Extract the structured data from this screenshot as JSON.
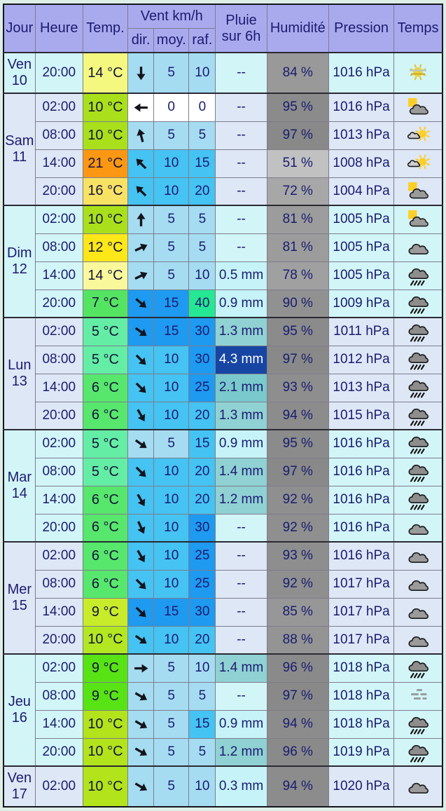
{
  "header": {
    "jour": "Jour",
    "heure": "Heure",
    "temp": "Temp.",
    "vent": "Vent km/h",
    "dir": "dir.",
    "moy": "moy.",
    "raf": "raf.",
    "pluie_line1": "Pluie",
    "pluie_line2": "sur 6h",
    "humidite": "Humidité",
    "pression": "Pression",
    "temps": "Temps"
  },
  "colors": {
    "header_bg": "#a9aaee",
    "text": "#1b1b70",
    "tone_cyan": "#d2f5f8",
    "tone_lav": "#dde7f6",
    "wind_levels": {
      "w0": "#ffffff",
      "w1": "#a5dcf2",
      "w2": "#45c3f2",
      "w3": "#1e9af0",
      "w4": "#26e793"
    },
    "rain_levels": {
      "p1": "#c5f3f8",
      "p2": "#90d1d3",
      "p3": "#7ac9cc",
      "p4": "#1645a4"
    },
    "rain_dark_text": "#ffffff",
    "arrow": "#14141c"
  },
  "days": [
    {
      "label": "Ven",
      "num": "10",
      "tone": "cyan",
      "rows": [
        {
          "heure": "20:00",
          "temp": "14 °C",
          "temp_color": "#f4f87e",
          "wind_deg": 90,
          "moy": "5",
          "moy_level": "w1",
          "raf": "10",
          "raf_level": "w1",
          "pluie": "--",
          "pluie_level": "none",
          "humidite": "84 %",
          "pression": "1016 hPa",
          "icon": "hazy-sun"
        }
      ]
    },
    {
      "label": "Sam",
      "num": "11",
      "tone": "lav",
      "rows": [
        {
          "heure": "02:00",
          "temp": "10 °C",
          "temp_color": "#a9e01b",
          "wind_deg": 180,
          "moy": "0",
          "moy_level": "w0",
          "raf": "0",
          "raf_level": "w0",
          "pluie": "--",
          "pluie_level": "none",
          "humidite": "95 %",
          "pression": "1016 hPa",
          "icon": "moon-cloud"
        },
        {
          "heure": "08:00",
          "temp": "10 °C",
          "temp_color": "#a9e01b",
          "wind_deg": -105,
          "moy": "5",
          "moy_level": "w1",
          "raf": "5",
          "raf_level": "w1",
          "pluie": "--",
          "pluie_level": "none",
          "humidite": "97 %",
          "pression": "1013 hPa",
          "icon": "sun-cloud"
        },
        {
          "heure": "14:00",
          "temp": "21 °C",
          "temp_color": "#fb9712",
          "wind_deg": -135,
          "moy": "10",
          "moy_level": "w2",
          "raf": "15",
          "raf_level": "w2",
          "pluie": "--",
          "pluie_level": "none",
          "humidite": "51 %",
          "pression": "1008 hPa",
          "icon": "sun-cloud"
        },
        {
          "heure": "20:00",
          "temp": "16 °C",
          "temp_color": "#f8e264",
          "wind_deg": -135,
          "moy": "10",
          "moy_level": "w2",
          "raf": "20",
          "raf_level": "w2",
          "pluie": "--",
          "pluie_level": "none",
          "humidite": "72 %",
          "pression": "1004 hPa",
          "icon": "moon-cloud"
        }
      ]
    },
    {
      "label": "Dim",
      "num": "12",
      "tone": "cyan",
      "rows": [
        {
          "heure": "02:00",
          "temp": "10 °C",
          "temp_color": "#a9e01b",
          "wind_deg": -90,
          "moy": "5",
          "moy_level": "w1",
          "raf": "5",
          "raf_level": "w1",
          "pluie": "--",
          "pluie_level": "none",
          "humidite": "81 %",
          "pression": "1005 hPa",
          "icon": "moon-cloud"
        },
        {
          "heure": "08:00",
          "temp": "12 °C",
          "temp_color": "#fde719",
          "wind_deg": -25,
          "moy": "5",
          "moy_level": "w1",
          "raf": "5",
          "raf_level": "w1",
          "pluie": "--",
          "pluie_level": "none",
          "humidite": "81 %",
          "pression": "1005 hPa",
          "icon": "cloud"
        },
        {
          "heure": "14:00",
          "temp": "14 °C",
          "temp_color": "#f9f99c",
          "wind_deg": -25,
          "moy": "5",
          "moy_level": "w1",
          "raf": "10",
          "raf_level": "w1",
          "pluie": "0.5 mm",
          "pluie_level": "p1",
          "humidite": "78 %",
          "pression": "1005 hPa",
          "icon": "rain"
        },
        {
          "heure": "20:00",
          "temp": "7 °C",
          "temp_color": "#55e462",
          "wind_deg": 40,
          "moy": "15",
          "moy_level": "w3",
          "raf": "40",
          "raf_level": "w4",
          "pluie": "0.9 mm",
          "pluie_level": "p1",
          "humidite": "90 %",
          "pression": "1009 hPa",
          "icon": "rain"
        }
      ]
    },
    {
      "label": "Lun",
      "num": "13",
      "tone": "lav",
      "rows": [
        {
          "heure": "02:00",
          "temp": "5 °C",
          "temp_color": "#64eda5",
          "wind_deg": 35,
          "moy": "15",
          "moy_level": "w3",
          "raf": "30",
          "raf_level": "w3",
          "pluie": "1.3 mm",
          "pluie_level": "p2",
          "humidite": "95 %",
          "pression": "1011 hPa",
          "icon": "rain"
        },
        {
          "heure": "08:00",
          "temp": "5 °C",
          "temp_color": "#64eda5",
          "wind_deg": 45,
          "moy": "10",
          "moy_level": "w2",
          "raf": "30",
          "raf_level": "w3",
          "pluie": "4.3 mm",
          "pluie_level": "p4",
          "humidite": "97 %",
          "pression": "1012 hPa",
          "icon": "rain"
        },
        {
          "heure": "14:00",
          "temp": "6 °C",
          "temp_color": "#57e76d",
          "wind_deg": 45,
          "moy": "10",
          "moy_level": "w2",
          "raf": "25",
          "raf_level": "w3",
          "pluie": "2.1 mm",
          "pluie_level": "p3",
          "humidite": "93 %",
          "pression": "1013 hPa",
          "icon": "rain"
        },
        {
          "heure": "20:00",
          "temp": "6 °C",
          "temp_color": "#57e76d",
          "wind_deg": 60,
          "moy": "10",
          "moy_level": "w2",
          "raf": "20",
          "raf_level": "w2",
          "pluie": "1.3 mm",
          "pluie_level": "p2",
          "humidite": "94 %",
          "pression": "1015 hPa",
          "icon": "rain"
        }
      ]
    },
    {
      "label": "Mar",
      "num": "14",
      "tone": "cyan",
      "rows": [
        {
          "heure": "02:00",
          "temp": "5 °C",
          "temp_color": "#64eda5",
          "wind_deg": 35,
          "moy": "5",
          "moy_level": "w1",
          "raf": "15",
          "raf_level": "w2",
          "pluie": "0.9 mm",
          "pluie_level": "p1",
          "humidite": "95 %",
          "pression": "1016 hPa",
          "icon": "rain"
        },
        {
          "heure": "08:00",
          "temp": "5 °C",
          "temp_color": "#64eda5",
          "wind_deg": 45,
          "moy": "10",
          "moy_level": "w2",
          "raf": "20",
          "raf_level": "w2",
          "pluie": "1.4 mm",
          "pluie_level": "p2",
          "humidite": "97 %",
          "pression": "1016 hPa",
          "icon": "rain"
        },
        {
          "heure": "14:00",
          "temp": "6 °C",
          "temp_color": "#57e76d",
          "wind_deg": 60,
          "moy": "10",
          "moy_level": "w2",
          "raf": "20",
          "raf_level": "w2",
          "pluie": "1.2 mm",
          "pluie_level": "p2",
          "humidite": "92 %",
          "pression": "1016 hPa",
          "icon": "rain"
        },
        {
          "heure": "20:00",
          "temp": "6 °C",
          "temp_color": "#57e76d",
          "wind_deg": 65,
          "moy": "10",
          "moy_level": "w2",
          "raf": "30",
          "raf_level": "w3",
          "pluie": "--",
          "pluie_level": "none",
          "humidite": "92 %",
          "pression": "1016 hPa",
          "icon": "cloud"
        }
      ]
    },
    {
      "label": "Mer",
      "num": "15",
      "tone": "lav",
      "rows": [
        {
          "heure": "02:00",
          "temp": "6 °C",
          "temp_color": "#57e76d",
          "wind_deg": 60,
          "moy": "10",
          "moy_level": "w2",
          "raf": "25",
          "raf_level": "w3",
          "pluie": "--",
          "pluie_level": "none",
          "humidite": "93 %",
          "pression": "1016 hPa",
          "icon": "cloud"
        },
        {
          "heure": "08:00",
          "temp": "6 °C",
          "temp_color": "#57e76d",
          "wind_deg": 45,
          "moy": "10",
          "moy_level": "w2",
          "raf": "25",
          "raf_level": "w3",
          "pluie": "--",
          "pluie_level": "none",
          "humidite": "92 %",
          "pression": "1017 hPa",
          "icon": "cloud"
        },
        {
          "heure": "14:00",
          "temp": "9 °C",
          "temp_color": "#c8ec29",
          "wind_deg": 45,
          "moy": "15",
          "moy_level": "w3",
          "raf": "30",
          "raf_level": "w3",
          "pluie": "--",
          "pluie_level": "none",
          "humidite": "85 %",
          "pression": "1017 hPa",
          "icon": "cloud"
        },
        {
          "heure": "20:00",
          "temp": "10 °C",
          "temp_color": "#b2e721",
          "wind_deg": 35,
          "moy": "10",
          "moy_level": "w2",
          "raf": "20",
          "raf_level": "w2",
          "pluie": "--",
          "pluie_level": "none",
          "humidite": "88 %",
          "pression": "1017 hPa",
          "icon": "cloud"
        }
      ]
    },
    {
      "label": "Jeu",
      "num": "16",
      "tone": "cyan",
      "rows": [
        {
          "heure": "02:00",
          "temp": "9 °C",
          "temp_color": "#58e315",
          "wind_deg": 0,
          "moy": "5",
          "moy_level": "w1",
          "raf": "10",
          "raf_level": "w1",
          "pluie": "1.4 mm",
          "pluie_level": "p2",
          "humidite": "96 %",
          "pression": "1018 hPa",
          "icon": "rain"
        },
        {
          "heure": "08:00",
          "temp": "9 °C",
          "temp_color": "#58e315",
          "wind_deg": 30,
          "moy": "5",
          "moy_level": "w1",
          "raf": "5",
          "raf_level": "w1",
          "pluie": "--",
          "pluie_level": "none",
          "humidite": "97 %",
          "pression": "1018 hPa",
          "icon": "fog"
        },
        {
          "heure": "14:00",
          "temp": "10 °C",
          "temp_color": "#b2e31b",
          "wind_deg": 30,
          "moy": "5",
          "moy_level": "w1",
          "raf": "15",
          "raf_level": "w2",
          "pluie": "0.9 mm",
          "pluie_level": "p1",
          "humidite": "94 %",
          "pression": "1018 hPa",
          "icon": "rain"
        },
        {
          "heure": "20:00",
          "temp": "10 °C",
          "temp_color": "#b2e31b",
          "wind_deg": 30,
          "moy": "5",
          "moy_level": "w1",
          "raf": "5",
          "raf_level": "w1",
          "pluie": "1.2 mm",
          "pluie_level": "p2",
          "humidite": "96 %",
          "pression": "1019 hPa",
          "icon": "rain"
        }
      ]
    },
    {
      "label": "Ven",
      "num": "17",
      "tone": "lav",
      "rows": [
        {
          "heure": "02:00",
          "temp": "10 °C",
          "temp_color": "#b2e31b",
          "wind_deg": 30,
          "moy": "5",
          "moy_level": "w1",
          "raf": "10",
          "raf_level": "w1",
          "pluie": "0.3 mm",
          "pluie_level": "p1",
          "humidite": "94 %",
          "pression": "1020 hPa",
          "icon": "cloud"
        }
      ]
    }
  ]
}
